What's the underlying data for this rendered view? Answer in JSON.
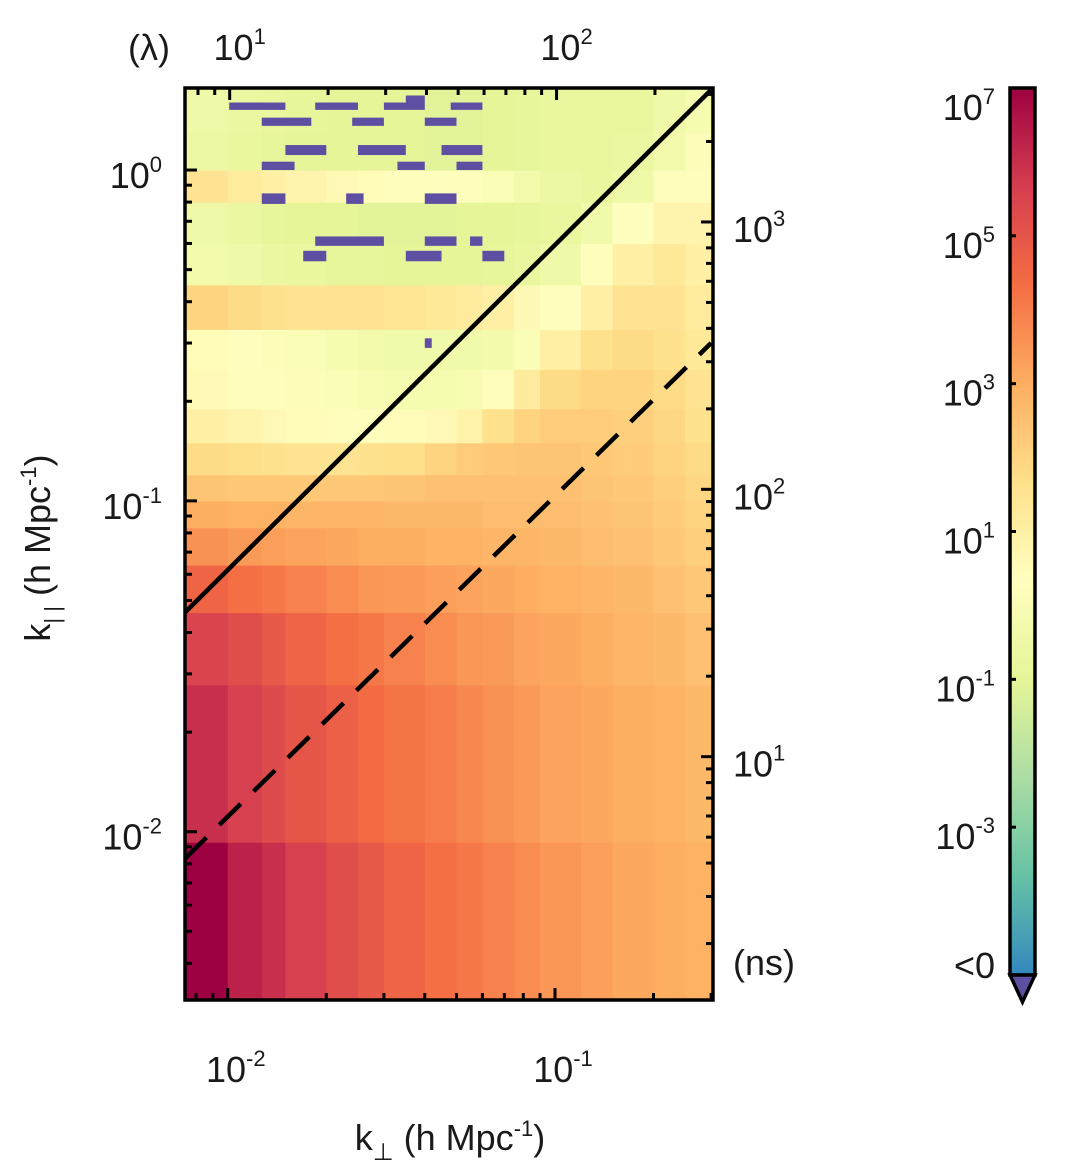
{
  "chart_data": {
    "type": "heatmap",
    "title": "",
    "xlabel": {
      "main": "k",
      "sub": "⊥",
      "unit": " (h Mpc",
      "unit_exp": "-1",
      "close": ")"
    },
    "ylabel": {
      "main": "k",
      "sub": "| |",
      "unit": " (h Mpc",
      "unit_exp": "-1",
      "close": ")"
    },
    "xscale": "log",
    "yscale": "log",
    "xlim": [
      0.0074,
      0.304
    ],
    "ylim": [
      0.0031,
      1.77
    ],
    "x_ticks": [
      {
        "value": 0.01,
        "base": "10",
        "exp": "-2"
      },
      {
        "value": 0.1,
        "base": "10",
        "exp": "-1"
      }
    ],
    "y_ticks": [
      {
        "value": 0.01,
        "base": "10",
        "exp": "-2"
      },
      {
        "value": 0.1,
        "base": "10",
        "exp": "-1"
      },
      {
        "value": 1,
        "base": "10",
        "exp": "0"
      }
    ],
    "top_axis": {
      "label": "(λ)",
      "lim": [
        7.3,
        301
      ],
      "ticks": [
        {
          "value": 10,
          "base": "10",
          "exp": "1"
        },
        {
          "value": 100,
          "base": "10",
          "exp": "2"
        }
      ]
    },
    "right_axis": {
      "label": "(ns)",
      "lim": [
        1.23,
        3170
      ],
      "ticks": [
        {
          "value": 10,
          "base": "10",
          "exp": "1"
        },
        {
          "value": 100,
          "base": "10",
          "exp": "2"
        },
        {
          "value": 1000,
          "base": "10",
          "exp": "3"
        }
      ]
    },
    "kperp_edges": [
      0.0074,
      0.01,
      0.0127,
      0.015,
      0.02,
      0.025,
      0.03,
      0.04,
      0.05,
      0.06,
      0.075,
      0.09,
      0.12,
      0.15,
      0.2,
      0.25,
      0.304
    ],
    "kpar_edges": [
      0.0031,
      0.0093,
      0.0278,
      0.046,
      0.064,
      0.083,
      0.1,
      0.12,
      0.15,
      0.19,
      0.25,
      0.33,
      0.45,
      0.6,
      0.8,
      1.0,
      1.3,
      1.77
    ],
    "log10_power": [
      [
        7.0,
        6.3,
        6.0,
        5.6,
        5.2,
        4.9,
        4.6,
        4.3,
        4.1,
        3.9,
        3.7,
        3.5,
        3.3,
        3.1,
        3.0,
        2.9
      ],
      [
        6.0,
        5.6,
        5.3,
        5.0,
        4.7,
        4.4,
        4.2,
        4.0,
        3.8,
        3.6,
        3.4,
        3.2,
        3.1,
        3.0,
        2.9,
        2.7
      ],
      [
        5.5,
        5.2,
        4.9,
        4.6,
        4.3,
        4.1,
        3.9,
        3.7,
        3.5,
        3.4,
        3.2,
        3.1,
        3.0,
        2.8,
        2.7,
        2.5
      ],
      [
        4.6,
        4.3,
        4.1,
        3.9,
        3.7,
        3.5,
        3.4,
        3.3,
        3.2,
        3.1,
        3.0,
        2.9,
        2.8,
        2.7,
        2.5,
        2.3
      ],
      [
        3.6,
        3.4,
        3.3,
        3.2,
        3.1,
        3.0,
        3.0,
        2.9,
        2.9,
        2.8,
        2.8,
        2.7,
        2.6,
        2.5,
        2.3,
        2.1
      ],
      [
        3.0,
        2.9,
        2.9,
        2.8,
        2.8,
        2.8,
        2.7,
        2.7,
        2.7,
        2.6,
        2.6,
        2.6,
        2.5,
        2.4,
        2.2,
        2.0
      ],
      [
        2.4,
        2.3,
        2.3,
        2.3,
        2.3,
        2.3,
        2.4,
        2.5,
        2.5,
        2.5,
        2.5,
        2.5,
        2.4,
        2.3,
        2.1,
        1.9
      ],
      [
        1.8,
        1.7,
        1.6,
        1.5,
        1.5,
        1.6,
        1.7,
        2.0,
        2.2,
        2.3,
        2.4,
        2.4,
        2.3,
        2.2,
        2.0,
        1.8
      ],
      [
        1.0,
        0.8,
        0.6,
        0.5,
        0.4,
        0.4,
        0.5,
        0.6,
        0.9,
        1.6,
        2.0,
        2.2,
        2.2,
        2.1,
        1.9,
        1.6
      ],
      [
        0.6,
        0.4,
        0.2,
        0.1,
        0.0,
        -0.1,
        -0.2,
        -0.2,
        -0.1,
        0.2,
        1.2,
        1.8,
        2.0,
        2.0,
        1.8,
        1.5
      ],
      [
        0.5,
        0.3,
        0.1,
        0.0,
        -0.2,
        -0.3,
        -0.4,
        -0.4,
        -0.4,
        -0.3,
        0.0,
        1.0,
        1.6,
        1.8,
        1.6,
        1.3
      ],
      [
        2.0,
        1.8,
        1.6,
        1.5,
        1.5,
        1.5,
        1.4,
        1.3,
        1.2,
        1.0,
        0.6,
        0.3,
        1.0,
        1.5,
        1.5,
        1.2
      ],
      [
        -0.3,
        -0.5,
        -0.7,
        -0.8,
        -0.9,
        -0.9,
        -1.0,
        -1.0,
        -1.0,
        -0.9,
        -0.8,
        -0.5,
        0.2,
        1.0,
        1.3,
        1.0
      ],
      [
        -0.5,
        -0.7,
        -0.9,
        -1.0,
        -1.0,
        -1.1,
        -1.1,
        -1.1,
        -1.0,
        -1.0,
        -0.9,
        -0.8,
        -0.4,
        0.3,
        0.8,
        0.8
      ],
      [
        1.5,
        1.2,
        1.0,
        0.8,
        0.6,
        0.5,
        0.4,
        0.3,
        0.2,
        0.0,
        -0.3,
        -0.6,
        -0.8,
        -0.5,
        0.2,
        0.4
      ],
      [
        -0.6,
        -0.8,
        -0.9,
        -1.0,
        -1.0,
        -1.0,
        -1.0,
        -1.1,
        -1.1,
        -1.0,
        -0.9,
        -0.8,
        -0.8,
        -0.7,
        -0.3,
        0.1
      ],
      [
        -0.5,
        -0.7,
        -0.8,
        -0.9,
        -1.0,
        -1.0,
        -1.0,
        -1.1,
        -1.1,
        -1.0,
        -0.9,
        -0.8,
        -0.8,
        -0.8,
        -0.5,
        -0.2
      ]
    ],
    "negative_cells": [
      [
        0.0101,
        0.015,
        1.52,
        1.6
      ],
      [
        0.0185,
        0.025,
        1.52,
        1.6
      ],
      [
        0.03,
        0.04,
        1.52,
        1.6
      ],
      [
        0.048,
        0.06,
        1.52,
        1.6
      ],
      [
        0.035,
        0.04,
        1.6,
        1.68
      ],
      [
        0.0127,
        0.018,
        1.36,
        1.44
      ],
      [
        0.024,
        0.03,
        1.36,
        1.44
      ],
      [
        0.04,
        0.05,
        1.36,
        1.44
      ],
      [
        0.015,
        0.02,
        1.11,
        1.19
      ],
      [
        0.025,
        0.035,
        1.11,
        1.19
      ],
      [
        0.045,
        0.06,
        1.11,
        1.19
      ],
      [
        0.0127,
        0.016,
        1.0,
        1.06
      ],
      [
        0.033,
        0.04,
        1.0,
        1.06
      ],
      [
        0.05,
        0.06,
        1.0,
        1.06
      ],
      [
        0.0127,
        0.015,
        0.79,
        0.85
      ],
      [
        0.023,
        0.026,
        0.79,
        0.85
      ],
      [
        0.04,
        0.05,
        0.79,
        0.85
      ],
      [
        0.0185,
        0.03,
        0.59,
        0.63
      ],
      [
        0.04,
        0.05,
        0.59,
        0.63
      ],
      [
        0.055,
        0.06,
        0.59,
        0.63
      ],
      [
        0.017,
        0.02,
        0.53,
        0.57
      ],
      [
        0.035,
        0.045,
        0.53,
        0.57
      ],
      [
        0.06,
        0.07,
        0.53,
        0.57
      ],
      [
        0.04,
        0.042,
        0.29,
        0.31
      ]
    ],
    "lines": [
      {
        "name": "horizon",
        "style": "solid",
        "from": [
          0.0074,
          0.046
        ],
        "to": [
          0.304,
          1.77
        ]
      },
      {
        "name": "buffer",
        "style": "dashed",
        "from": [
          0.0074,
          0.0083
        ],
        "to": [
          0.3,
          0.3
        ]
      }
    ],
    "colorbar": {
      "scale": "log",
      "range_log10": [
        -5,
        7
      ],
      "ticks": [
        {
          "value": 7,
          "base": "10",
          "exp": "7"
        },
        {
          "value": 5,
          "base": "10",
          "exp": "5"
        },
        {
          "value": 3,
          "base": "10",
          "exp": "3"
        },
        {
          "value": 1,
          "base": "10",
          "exp": "1"
        },
        {
          "value": -1,
          "base": "10",
          "exp": "-1"
        },
        {
          "value": -3,
          "base": "10",
          "exp": "-3"
        }
      ],
      "below_label": "<0",
      "colors": [
        "#3288bd",
        "#66c2a5",
        "#abdda4",
        "#e6f598",
        "#ffffbf",
        "#fee08b",
        "#fdae61",
        "#f46d43",
        "#d53e4f",
        "#9e0142"
      ],
      "negative_color": "#5e4fa2"
    }
  }
}
